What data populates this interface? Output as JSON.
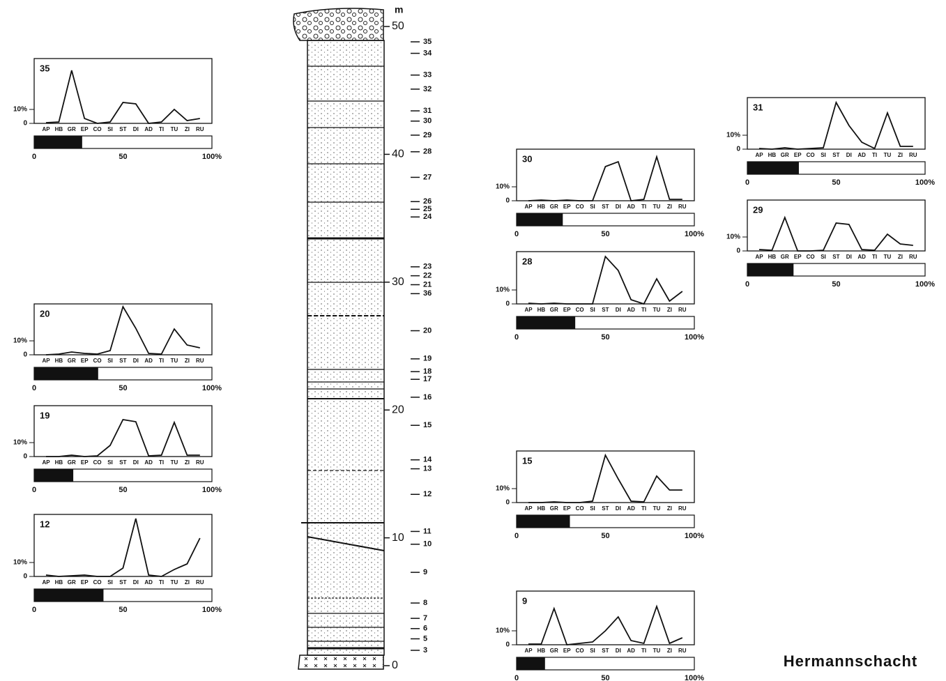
{
  "title": "Hermannschacht",
  "chart_data": [
    {
      "type": "line",
      "title": "35",
      "categories": [
        "AP",
        "HB",
        "GR",
        "EP",
        "CO",
        "SI",
        "ST",
        "DI",
        "AD",
        "TI",
        "TU",
        "ZI",
        "RU"
      ],
      "values": [
        0.5,
        1,
        38,
        3.5,
        0,
        1,
        15,
        14,
        0,
        1,
        10,
        2,
        3.5
      ],
      "ylim": [
        0,
        46.5
      ],
      "yticks": [
        0,
        {
          "value": 10,
          "label": "10%"
        }
      ],
      "bar_value": 27,
      "bar_lim": [
        0,
        100
      ],
      "bar_ticks": [
        0,
        50,
        {
          "value": 100,
          "label": "100%"
        }
      ]
    },
    {
      "type": "line",
      "title": "20",
      "categories": [
        "AP",
        "HB",
        "GR",
        "EP",
        "CO",
        "SI",
        "ST",
        "DI",
        "AD",
        "TI",
        "TU",
        "ZI",
        "RU"
      ],
      "values": [
        0,
        0.5,
        2,
        1,
        0.5,
        3,
        34.5,
        19,
        1,
        0.5,
        18.5,
        7,
        5
      ],
      "ylim": [
        0,
        36.5
      ],
      "yticks": [
        0,
        {
          "value": 10,
          "label": "10%"
        }
      ],
      "bar_value": 36,
      "bar_lim": [
        0,
        100
      ],
      "bar_ticks": [
        0,
        50,
        {
          "value": 100,
          "label": "100%"
        }
      ]
    },
    {
      "type": "line",
      "title": "19",
      "categories": [
        "AP",
        "HB",
        "GR",
        "EP",
        "CO",
        "SI",
        "ST",
        "DI",
        "AD",
        "TI",
        "TU",
        "ZI",
        "RU"
      ],
      "values": [
        0,
        0,
        1,
        0,
        0.5,
        8,
        26.5,
        25,
        0.5,
        1,
        24.5,
        1,
        1
      ],
      "ylim": [
        0,
        36.5
      ],
      "yticks": [
        0,
        {
          "value": 10,
          "label": "10%"
        }
      ],
      "bar_value": 22,
      "bar_lim": [
        0,
        100
      ],
      "bar_ticks": [
        0,
        50,
        {
          "value": 100,
          "label": "100%"
        }
      ]
    },
    {
      "type": "line",
      "title": "12",
      "categories": [
        "AP",
        "HB",
        "GR",
        "EP",
        "CO",
        "SI",
        "ST",
        "DI",
        "AD",
        "TI",
        "TU",
        "ZI",
        "RU"
      ],
      "values": [
        1,
        0,
        0.5,
        1,
        0,
        0,
        6,
        41.5,
        1,
        0,
        5,
        9,
        27.5
      ],
      "ylim": [
        0,
        44.5
      ],
      "yticks": [
        0,
        {
          "value": 10,
          "label": "10%"
        }
      ],
      "bar_value": 39,
      "bar_lim": [
        0,
        100
      ],
      "bar_ticks": [
        0,
        50,
        {
          "value": 100,
          "label": "100%"
        }
      ]
    },
    {
      "type": "line",
      "title": "30",
      "categories": [
        "AP",
        "HB",
        "GR",
        "EP",
        "CO",
        "SI",
        "ST",
        "DI",
        "AD",
        "TI",
        "TU",
        "ZI",
        "RU"
      ],
      "values": [
        0,
        0.5,
        0,
        0.5,
        0,
        0,
        24.5,
        28,
        0,
        1,
        31.5,
        1,
        1
      ],
      "ylim": [
        0,
        37
      ],
      "yticks": [
        0,
        {
          "value": 10,
          "label": "10%"
        }
      ],
      "bar_value": 26,
      "bar_lim": [
        0,
        100
      ],
      "bar_ticks": [
        0,
        50,
        {
          "value": 100,
          "label": "100%"
        }
      ]
    },
    {
      "type": "line",
      "title": "28",
      "categories": [
        "AP",
        "HB",
        "GR",
        "EP",
        "CO",
        "SI",
        "ST",
        "DI",
        "AD",
        "TI",
        "TU",
        "ZI",
        "RU"
      ],
      "values": [
        0.5,
        0,
        0.5,
        0,
        0,
        0,
        34,
        24,
        3,
        0,
        18,
        2,
        9
      ],
      "ylim": [
        0,
        37.5
      ],
      "yticks": [
        0,
        {
          "value": 10,
          "label": "10%"
        }
      ],
      "bar_value": 33,
      "bar_lim": [
        0,
        100
      ],
      "bar_ticks": [
        0,
        50,
        {
          "value": 100,
          "label": "100%"
        }
      ]
    },
    {
      "type": "line",
      "title": "15",
      "categories": [
        "AP",
        "HB",
        "GR",
        "EP",
        "CO",
        "SI",
        "ST",
        "DI",
        "AD",
        "TI",
        "TU",
        "ZI",
        "RU"
      ],
      "values": [
        0,
        0,
        0.5,
        0,
        0,
        1,
        34,
        17,
        1,
        0.5,
        19,
        9,
        9
      ],
      "ylim": [
        0,
        37
      ],
      "yticks": [
        0,
        {
          "value": 10,
          "label": "10%"
        }
      ],
      "bar_value": 30,
      "bar_lim": [
        0,
        100
      ],
      "bar_ticks": [
        0,
        50,
        {
          "value": 100,
          "label": "100%"
        }
      ]
    },
    {
      "type": "line",
      "title": "9",
      "categories": [
        "AP",
        "HB",
        "GR",
        "EP",
        "CO",
        "SI",
        "ST",
        "DI",
        "AD",
        "TI",
        "TU",
        "ZI",
        "RU"
      ],
      "values": [
        0.5,
        0.5,
        26,
        0,
        1,
        2,
        10,
        20,
        3,
        1,
        27.5,
        1,
        5
      ],
      "ylim": [
        0,
        38.5
      ],
      "yticks": [
        0,
        {
          "value": 10,
          "label": "10%"
        }
      ],
      "bar_value": 16,
      "bar_lim": [
        0,
        100
      ],
      "bar_ticks": [
        0,
        50,
        {
          "value": 100,
          "label": "100%"
        }
      ]
    },
    {
      "type": "line",
      "title": "31",
      "categories": [
        "AP",
        "HB",
        "GR",
        "EP",
        "CO",
        "SI",
        "ST",
        "DI",
        "AD",
        "TI",
        "TU",
        "ZI",
        "RU"
      ],
      "values": [
        0.5,
        0,
        1,
        0,
        0.5,
        1,
        33.5,
        17,
        5,
        0.5,
        26,
        2,
        2
      ],
      "ylim": [
        0,
        37
      ],
      "yticks": [
        0,
        {
          "value": 10,
          "label": "10%"
        }
      ],
      "bar_value": 29,
      "bar_lim": [
        0,
        100
      ],
      "bar_ticks": [
        0,
        50,
        {
          "value": 100,
          "label": "100%"
        }
      ]
    },
    {
      "type": "line",
      "title": "29",
      "categories": [
        "AP",
        "HB",
        "GR",
        "EP",
        "CO",
        "SI",
        "ST",
        "DI",
        "AD",
        "TI",
        "TU",
        "ZI",
        "RU"
      ],
      "values": [
        1,
        0.5,
        24,
        0,
        0,
        0.5,
        20,
        19,
        1,
        0.5,
        12,
        5,
        4
      ],
      "ylim": [
        0,
        36.5
      ],
      "yticks": [
        0,
        {
          "value": 10,
          "label": "10%"
        }
      ],
      "bar_value": 26,
      "bar_lim": [
        0,
        100
      ],
      "bar_ticks": [
        0,
        50,
        {
          "value": 100,
          "label": "100%"
        }
      ]
    },
    {
      "type": "column",
      "unit": "m",
      "ylim": [
        0,
        50
      ],
      "yticks": [
        0,
        10,
        20,
        30,
        40,
        50
      ],
      "samples": [
        {
          "label": "35",
          "value": 48.8
        },
        {
          "label": "34",
          "value": 47.9
        },
        {
          "label": "33",
          "value": 46.2
        },
        {
          "label": "32",
          "value": 45.1
        },
        {
          "label": "31",
          "value": 43.4
        },
        {
          "label": "30",
          "value": 42.6
        },
        {
          "label": "29",
          "value": 41.5
        },
        {
          "label": "28",
          "value": 40.2
        },
        {
          "label": "27",
          "value": 38.2
        },
        {
          "label": "26",
          "value": 36.3
        },
        {
          "label": "25",
          "value": 35.7
        },
        {
          "label": "24",
          "value": 35.1
        },
        {
          "label": "23",
          "value": 31.2
        },
        {
          "label": "22",
          "value": 30.5
        },
        {
          "label": "21",
          "value": 29.8
        },
        {
          "label": "36",
          "value": 29.1
        },
        {
          "label": "20",
          "value": 26.2
        },
        {
          "label": "19",
          "value": 24.0
        },
        {
          "label": "18",
          "value": 23.0
        },
        {
          "label": "17",
          "value": 22.4
        },
        {
          "label": "16",
          "value": 21.0
        },
        {
          "label": "15",
          "value": 18.8
        },
        {
          "label": "14",
          "value": 16.1
        },
        {
          "label": "13",
          "value": 15.4
        },
        {
          "label": "12",
          "value": 13.4
        },
        {
          "label": "11",
          "value": 10.5
        },
        {
          "label": "10",
          "value": 9.5
        },
        {
          "label": "9",
          "value": 7.3
        },
        {
          "label": "8",
          "value": 4.9
        },
        {
          "label": "7",
          "value": 3.7
        },
        {
          "label": "6",
          "value": 2.9
        },
        {
          "label": "5",
          "value": 2.1
        },
        {
          "label": "3",
          "value": 1.2
        }
      ]
    }
  ]
}
